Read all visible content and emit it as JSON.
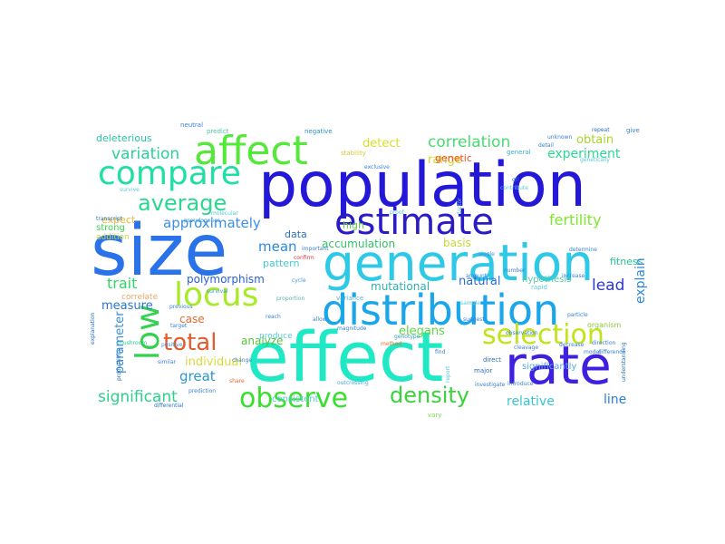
{
  "words": [
    {
      "text": "population",
      "color": "#2318d8"
    },
    {
      "text": "size",
      "color": "#2a72ea"
    },
    {
      "text": "effect",
      "color": "#1fe8c4"
    },
    {
      "text": "generation",
      "color": "#2ec9e6"
    },
    {
      "text": "distribution",
      "color": "#1aa6ea"
    },
    {
      "text": "rate",
      "color": "#3f1fe0"
    },
    {
      "text": "affect",
      "color": "#53e83a"
    },
    {
      "text": "compare",
      "color": "#20dfa6"
    },
    {
      "text": "estimate",
      "color": "#2a1ac8"
    },
    {
      "text": "locus",
      "color": "#a8ea28"
    },
    {
      "text": "low",
      "color": "#33d24e"
    },
    {
      "text": "observe",
      "color": "#38e02c"
    },
    {
      "text": "selection",
      "color": "#c0e418"
    },
    {
      "text": "total",
      "color": "#e25a2e"
    },
    {
      "text": "average",
      "color": "#2bd890"
    },
    {
      "text": "density",
      "color": "#3ad23a"
    },
    {
      "text": "variation",
      "color": "#2cd09a"
    },
    {
      "text": "significant",
      "color": "#2ad08c"
    },
    {
      "text": "correlation",
      "color": "#46dc70"
    },
    {
      "text": "experiment",
      "color": "#2ad894"
    },
    {
      "text": "fertility",
      "color": "#7ee82a"
    },
    {
      "text": "approximately",
      "color": "#3c8ee6"
    },
    {
      "text": "accumulation",
      "color": "#34c068"
    },
    {
      "text": "mean",
      "color": "#2888e2"
    },
    {
      "text": "trait",
      "color": "#30d868"
    },
    {
      "text": "lead",
      "color": "#2c38d0"
    },
    {
      "text": "detect",
      "color": "#d8e02a"
    },
    {
      "text": "range",
      "color": "#d8d41e"
    },
    {
      "text": "obtain",
      "color": "#a8d62a"
    },
    {
      "text": "deleterious",
      "color": "#2ac4a8"
    },
    {
      "text": "relative",
      "color": "#38c6d2"
    },
    {
      "text": "line",
      "color": "#2a7ee0"
    },
    {
      "text": "great",
      "color": "#2a98c8"
    },
    {
      "text": "individual",
      "color": "#d8da3a"
    },
    {
      "text": "elegans",
      "color": "#5cd83e"
    },
    {
      "text": "analyze",
      "color": "#58c43a"
    },
    {
      "text": "fitness",
      "color": "#2ac48c"
    },
    {
      "text": "explain",
      "color": "#2a88d8"
    },
    {
      "text": "polymorphism",
      "color": "#2a60d4"
    },
    {
      "text": "parameter",
      "color": "#3a8ed2"
    },
    {
      "text": "pattern",
      "color": "#4ac8d0"
    },
    {
      "text": "natural",
      "color": "#2a6cd8"
    },
    {
      "text": "mutational",
      "color": "#2ab0b0"
    },
    {
      "text": "measure",
      "color": "#2a74d0"
    },
    {
      "text": "basis",
      "color": "#c8d83a"
    },
    {
      "text": "high",
      "color": "#5ad04a"
    },
    {
      "text": "data",
      "color": "#2a70b8"
    },
    {
      "text": "genetic",
      "color": "#e85030"
    },
    {
      "text": "expect",
      "color": "#e8b83a"
    },
    {
      "text": "case",
      "color": "#e86a2a"
    },
    {
      "text": "hypothesis",
      "color": "#58c8a8"
    },
    {
      "text": "strong",
      "color": "#3ad84a"
    },
    {
      "text": "addition",
      "color": "#c8d84a"
    },
    {
      "text": "correlate",
      "color": "#e8a86a"
    },
    {
      "text": "consistent",
      "color": "#58c8d8"
    },
    {
      "text": "produce",
      "color": "#58c8d8"
    },
    {
      "text": "significantly",
      "color": "#58a8e8"
    },
    {
      "text": "mushroom",
      "color": "#2ac880"
    },
    {
      "text": "differential",
      "color": "#2a70d0"
    },
    {
      "text": "outcrossing",
      "color": "#4aa8e0"
    },
    {
      "text": "genotype",
      "color": "#2a9ec8"
    },
    {
      "text": "variance",
      "color": "#4ab8c8"
    },
    {
      "text": "cycle",
      "color": "#3a9ad8"
    },
    {
      "text": "positive",
      "color": "#3a90d0"
    },
    {
      "text": "major",
      "color": "#2a70c8"
    },
    {
      "text": "direct",
      "color": "#2a70c8"
    },
    {
      "text": "organism",
      "color": "#8ac83a"
    },
    {
      "text": "vary",
      "color": "#78d84a"
    },
    {
      "text": "rapid",
      "color": "#58c8d8"
    },
    {
      "text": "single",
      "color": "#3a90d8"
    },
    {
      "text": "investigate",
      "color": "#3a80d8"
    },
    {
      "text": "proportion",
      "color": "#58b8a8"
    },
    {
      "text": "negative",
      "color": "#2a90c8"
    },
    {
      "text": "predict",
      "color": "#4ac8a8"
    },
    {
      "text": "survive",
      "color": "#58c8d8"
    },
    {
      "text": "pseudogenes",
      "color": "#3a9ad8"
    },
    {
      "text": "molecular",
      "color": "#58c8d8"
    },
    {
      "text": "stability",
      "color": "#d8c83a"
    },
    {
      "text": "general",
      "color": "#3ab0d8"
    },
    {
      "text": "give",
      "color": "#3a80d8"
    },
    {
      "text": "neutral",
      "color": "#3a80d8"
    },
    {
      "text": "transcript",
      "color": "#2a70b8"
    },
    {
      "text": "qtl",
      "color": "#2a70b8"
    },
    {
      "text": "confirm",
      "color": "#d83a3a"
    },
    {
      "text": "allow",
      "color": "#3a80c8"
    },
    {
      "text": "magnitude",
      "color": "#3a80c8"
    },
    {
      "text": "method",
      "color": "#e86a2a"
    },
    {
      "text": "find",
      "color": "#3a80c8"
    },
    {
      "text": "report",
      "color": "#58c8d8"
    },
    {
      "text": "proof",
      "color": "#58c8d8"
    },
    {
      "text": "factor",
      "color": "#58c8d8"
    },
    {
      "text": "survival",
      "color": "#3a9ad8"
    },
    {
      "text": "target",
      "color": "#3a80d8"
    },
    {
      "text": "previous",
      "color": "#3a80d8"
    },
    {
      "text": "share",
      "color": "#e86a2a"
    },
    {
      "text": "explanation",
      "color": "#2a70b8"
    },
    {
      "text": "contribute",
      "color": "#58c8d8"
    },
    {
      "text": "productivity",
      "color": "#2a70b8"
    },
    {
      "text": "repeat",
      "color": "#2a70b8"
    },
    {
      "text": "understanding",
      "color": "#2a70b8"
    },
    {
      "text": "genetically",
      "color": "#58c8d8"
    },
    {
      "text": "determine",
      "color": "#3a80d8"
    },
    {
      "text": "sample",
      "color": "#58c8d8"
    },
    {
      "text": "particle",
      "color": "#3a80d8"
    },
    {
      "text": "introduce",
      "color": "#3a80d8"
    },
    {
      "text": "model",
      "color": "#3a80d8"
    },
    {
      "text": "difference",
      "color": "#3a80d8"
    },
    {
      "text": "detail",
      "color": "#3a80d8"
    },
    {
      "text": "amount",
      "color": "#3a80d8"
    },
    {
      "text": "increase",
      "color": "#3a80d8"
    },
    {
      "text": "decrease",
      "color": "#3a80d8"
    },
    {
      "text": "unknown",
      "color": "#3a80d8"
    },
    {
      "text": "important",
      "color": "#3a80d8"
    },
    {
      "text": "number",
      "color": "#3a80d8"
    },
    {
      "text": "direction",
      "color": "#3a80d8"
    },
    {
      "text": "observation",
      "color": "#3a80d8"
    },
    {
      "text": "cleavage",
      "color": "#3a80d8"
    },
    {
      "text": "prediction",
      "color": "#3a80d8"
    },
    {
      "text": "reach",
      "color": "#3a80d8"
    },
    {
      "text": "suggest",
      "color": "#3a80d8"
    },
    {
      "text": "change",
      "color": "#3a80d8"
    },
    {
      "text": "similar",
      "color": "#3a80d8"
    },
    {
      "text": "exclusive",
      "color": "#3a80d8"
    }
  ]
}
